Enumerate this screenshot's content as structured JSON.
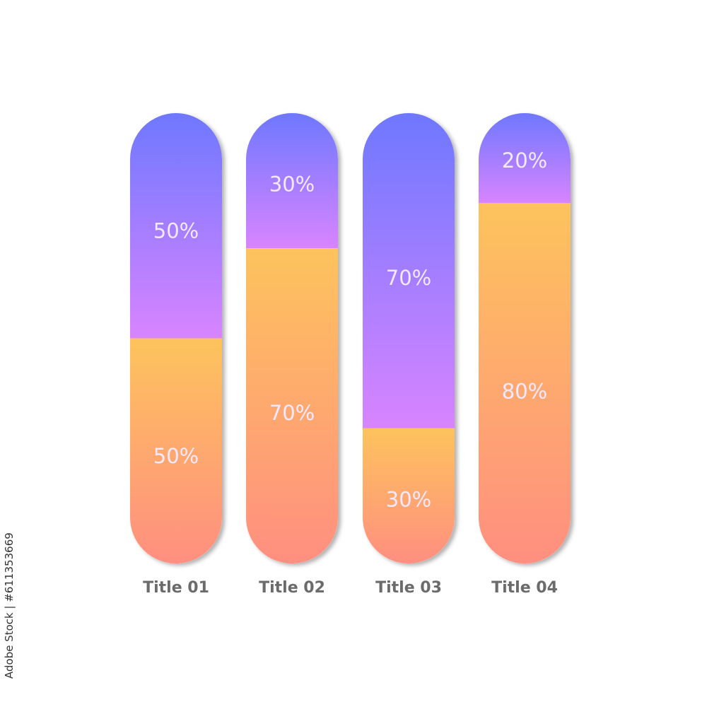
{
  "chart_data": {
    "type": "bar",
    "stacked": true,
    "orientation": "vertical",
    "categories": [
      "Title 01",
      "Title 02",
      "Title 03",
      "Title 04"
    ],
    "series": [
      {
        "values": [
          50,
          30,
          70,
          20
        ],
        "labels": [
          "50%",
          "30%",
          "70%",
          "20%"
        ],
        "color_top": "#6e78ff",
        "color_bottom": "#d884ff",
        "position": "top"
      },
      {
        "values": [
          50,
          70,
          30,
          80
        ],
        "labels": [
          "50%",
          "70%",
          "30%",
          "80%"
        ],
        "color_top": "#fdc35d",
        "color_bottom": "#ff8f80",
        "position": "bottom"
      }
    ],
    "ylim": [
      0,
      100
    ],
    "grid": false,
    "legend": "none",
    "label_color": "#f3e9ff",
    "category_label_color": "#6b6b6b"
  },
  "watermark": "Adobe Stock | #611353669"
}
